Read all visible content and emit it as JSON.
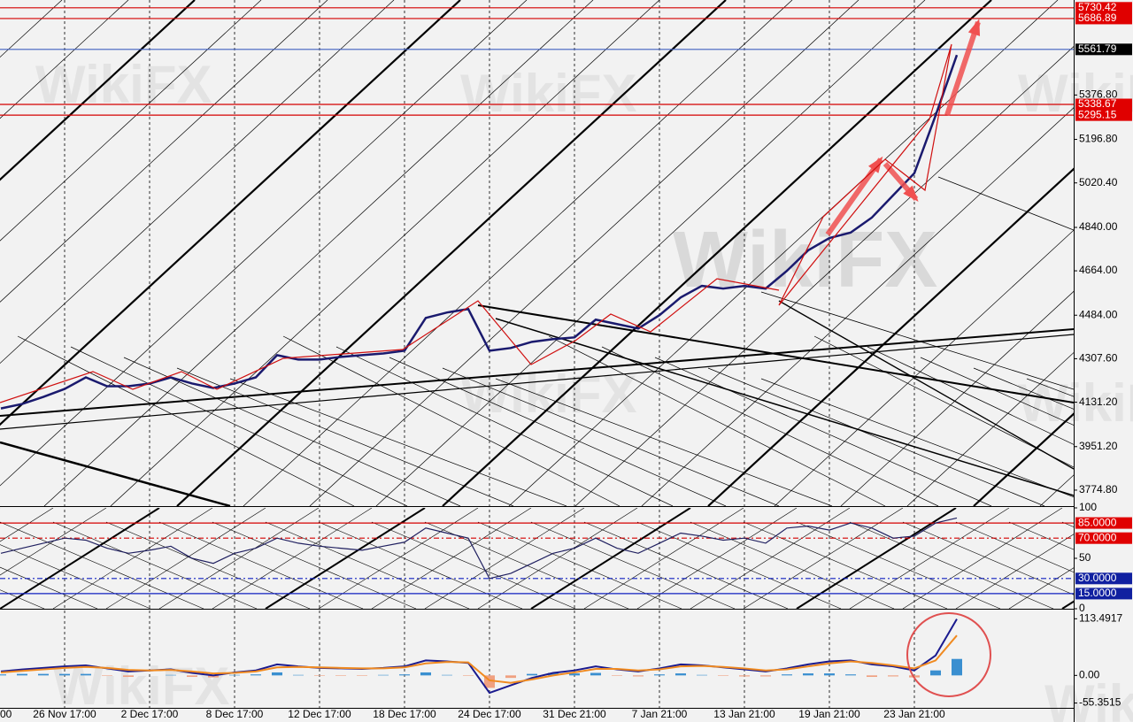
{
  "watermark": "WikiFX",
  "chart_data": [
    {
      "type": "line",
      "ylim": [
        3710,
        5762
      ],
      "yticks": [
        {
          "value": 3774.8,
          "label": "3774.80"
        },
        {
          "value": 3951.2,
          "label": "3951.20"
        },
        {
          "value": 4131.2,
          "label": "4131.20"
        },
        {
          "value": 4307.6,
          "label": "4307.60"
        },
        {
          "value": 4484,
          "label": "4484.00"
        },
        {
          "value": 4664,
          "label": "4664.00"
        },
        {
          "value": 4840,
          "label": "4840.00"
        },
        {
          "value": 5020.4,
          "label": "5020.40"
        },
        {
          "value": 5196.8,
          "label": "5196.80"
        },
        {
          "value": 5376.8,
          "label": "5376.80"
        }
      ],
      "levels": [
        {
          "value": 5730.42,
          "label": "5730.42",
          "line_color": "#d40000",
          "box_color": "#e00000"
        },
        {
          "value": 5686.89,
          "label": "5686.89",
          "line_color": "#d40000",
          "box_color": "#e00000"
        },
        {
          "value": 5561.79,
          "label": "5561.79",
          "line_color": "#4060c0",
          "box_color": "#000000"
        },
        {
          "value": 5338.67,
          "label": "5338.67",
          "line_color": "#d40000",
          "box_color": "#e00000"
        },
        {
          "value": 5295.15,
          "label": "5295.15",
          "line_color": "#d40000",
          "box_color": "#e00000"
        }
      ],
      "series": [
        {
          "color": "#1a1a6e",
          "values": [
            4106,
            4124,
            4153,
            4185,
            4232,
            4196,
            4196,
            4207,
            4232,
            4207,
            4189,
            4207,
            4232,
            4322,
            4304,
            4304,
            4315,
            4322,
            4329,
            4340,
            4473,
            4495,
            4509,
            4340,
            4351,
            4376,
            4387,
            4394,
            4466,
            4448,
            4430,
            4484,
            4556,
            4603,
            4592,
            4603,
            4592,
            4664,
            4747,
            4797,
            4819,
            4880,
            4970,
            5060,
            5294,
            5539
          ]
        }
      ]
    },
    {
      "type": "line",
      "ylim": [
        0,
        100
      ],
      "yticks": [
        0,
        50,
        100
      ],
      "levels": [
        {
          "value": 85,
          "label": "85.0000",
          "line_color": "#d40000",
          "box_color": "#e00000",
          "dashed": false
        },
        {
          "value": 70,
          "label": "70.0000",
          "line_color": "#d40000",
          "box_color": "#e00000",
          "dashed": true
        },
        {
          "value": 30,
          "label": "30.0000",
          "line_color": "#1020c0",
          "box_color": "#1020a0",
          "dashed": true
        },
        {
          "value": 15,
          "label": "15.0000",
          "line_color": "#1020c0",
          "box_color": "#1020a0",
          "dashed": false
        }
      ],
      "series": [
        {
          "color": "#202060",
          "values": [
            55,
            60,
            65,
            70,
            68,
            60,
            55,
            58,
            62,
            50,
            45,
            55,
            60,
            70,
            65,
            62,
            60,
            58,
            62,
            66,
            80,
            75,
            70,
            30,
            35,
            45,
            55,
            60,
            70,
            60,
            55,
            65,
            75,
            72,
            68,
            70,
            65,
            80,
            82,
            78,
            85,
            80,
            70,
            72,
            85,
            90
          ]
        }
      ]
    },
    {
      "type": "macd",
      "ylim": [
        -65,
        130
      ],
      "yticks": [
        {
          "value": 113.4917,
          "label": "113.4917"
        },
        {
          "value": 0,
          "label": "0.00"
        },
        {
          "value": -55.3515,
          "label": "-55.3515"
        }
      ],
      "categories": [
        "00",
        null,
        null,
        "26 Nov 17:00",
        null,
        null,
        null,
        "2 Dec 17:00",
        null,
        null,
        null,
        "8 Dec 17:00",
        null,
        null,
        null,
        "12 Dec 17:00",
        null,
        null,
        null,
        "18 Dec 17:00",
        null,
        null,
        null,
        "24 Dec 17:00",
        null,
        null,
        null,
        "31 Dec 21:00",
        null,
        null,
        null,
        "7 Jan 21:00",
        null,
        null,
        null,
        "13 Jan 21:00",
        null,
        null,
        null,
        "19 Jan 21:00",
        null,
        null,
        null,
        "23 Jan 21:00",
        null,
        null
      ],
      "series": [
        {
          "color": "#1a1a8e",
          "values": [
            8,
            12,
            15,
            18,
            20,
            14,
            8,
            10,
            12,
            5,
            0,
            6,
            10,
            22,
            18,
            15,
            14,
            13,
            15,
            18,
            30,
            28,
            25,
            -35,
            -20,
            -5,
            5,
            10,
            18,
            12,
            8,
            14,
            22,
            20,
            16,
            12,
            8,
            14,
            22,
            28,
            30,
            22,
            18,
            10,
            40,
            113
          ]
        },
        {
          "color": "#f08a20",
          "values": [
            6,
            9,
            12,
            15,
            17,
            15,
            11,
            10,
            11,
            8,
            4,
            5,
            8,
            16,
            17,
            16,
            15,
            14,
            14,
            16,
            24,
            27,
            26,
            -10,
            -15,
            -8,
            0,
            6,
            13,
            13,
            10,
            12,
            18,
            19,
            17,
            14,
            10,
            12,
            18,
            24,
            28,
            25,
            20,
            14,
            30,
            80
          ]
        }
      ],
      "histogram": {
        "color_up": "#3a8fd0",
        "color_down": "#f0a080",
        "values": [
          2,
          3,
          3,
          3,
          3,
          -1,
          -3,
          0,
          1,
          -3,
          -4,
          1,
          2,
          6,
          1,
          -1,
          -1,
          -1,
          1,
          2,
          6,
          1,
          -1,
          -25,
          -5,
          3,
          5,
          4,
          5,
          -1,
          -2,
          2,
          4,
          1,
          -1,
          -2,
          -2,
          2,
          4,
          4,
          2,
          -3,
          -2,
          -4,
          10,
          33
        ]
      }
    }
  ]
}
